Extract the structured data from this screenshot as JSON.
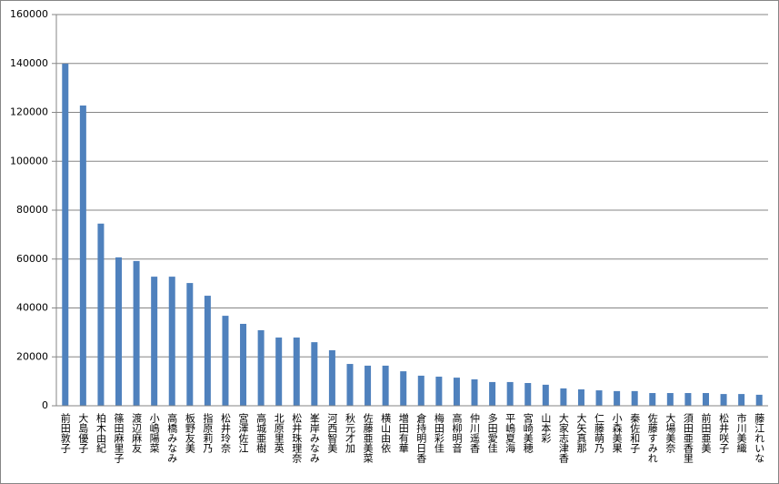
{
  "chart_data": {
    "type": "bar",
    "categories": [
      "前田敦子",
      "大島優子",
      "柏木由紀",
      "篠田麻里子",
      "渡辺麻友",
      "小嶋陽菜",
      "高橋みなみ",
      "板野友美",
      "指原莉乃",
      "松井玲奈",
      "宮澤佐江",
      "高城亜樹",
      "北原里英",
      "松井珠理奈",
      "峯岸みなみ",
      "河西智美",
      "秋元才加",
      "佐藤亜美菜",
      "横山由依",
      "増田有華",
      "倉持明日香",
      "梅田彩佳",
      "高柳明音",
      "仲川遥香",
      "多田愛佳",
      "平嶋夏海",
      "宮崎美穂",
      "山本彩",
      "大家志津香",
      "大矢真那",
      "仁藤萌乃",
      "小森美果",
      "秦佐和子",
      "佐藤すみれ",
      "大場美奈",
      "須田亜香里",
      "前田亜美",
      "松井咲子",
      "市川美織",
      "藤江れいな"
    ],
    "values": [
      139900,
      122800,
      74500,
      60700,
      59200,
      52800,
      52800,
      50200,
      45000,
      36800,
      33500,
      30900,
      27900,
      27900,
      26000,
      22700,
      17100,
      16400,
      16400,
      14100,
      12300,
      11900,
      11500,
      10800,
      9700,
      9700,
      9300,
      8600,
      7100,
      6700,
      6300,
      6000,
      6000,
      5200,
      5200,
      5200,
      5200,
      4800,
      4800,
      4500
    ],
    "color": "#4f81bd",
    "ylim": [
      0,
      160000
    ],
    "yticks": [
      0,
      20000,
      40000,
      60000,
      80000,
      100000,
      120000,
      140000,
      160000
    ],
    "grid": true
  }
}
